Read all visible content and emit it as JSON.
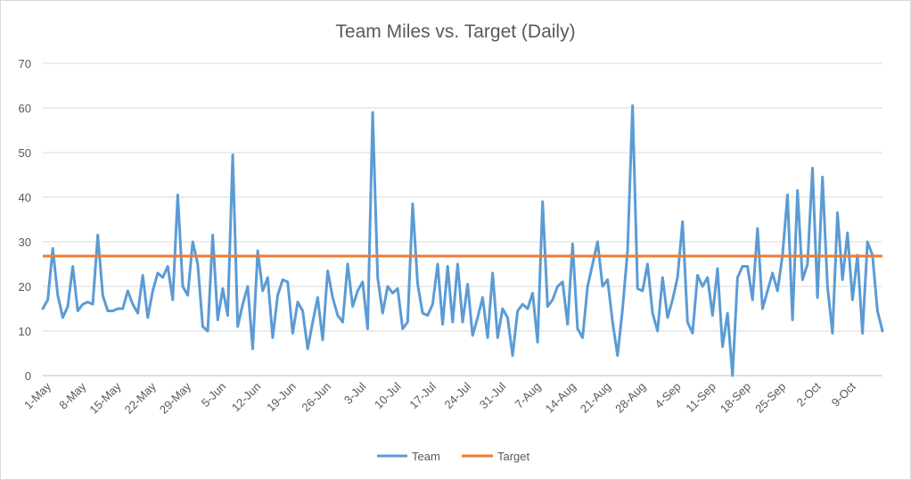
{
  "chart_data": {
    "type": "line",
    "title": "Team Miles vs. Target (Daily)",
    "xlabel": "",
    "ylabel": "",
    "ylim": [
      0,
      70
    ],
    "yticks": [
      0,
      10,
      20,
      30,
      40,
      50,
      60,
      70
    ],
    "grid": true,
    "legend_position": "bottom",
    "x_tick_labels": [
      "1-May",
      "8-May",
      "15-May",
      "22-May",
      "29-May",
      "5-Jun",
      "12-Jun",
      "19-Jun",
      "26-Jun",
      "3-Jul",
      "10-Jul",
      "17-Jul",
      "24-Jul",
      "31-Jul",
      "7-Aug",
      "14-Aug",
      "21-Aug",
      "28-Aug",
      "4-Sep",
      "11-Sep",
      "18-Sep",
      "25-Sep",
      "2-Oct",
      "9-Oct"
    ],
    "x_tick_every_days": 7,
    "series": [
      {
        "name": "Team",
        "color": "#5B9BD5",
        "values": [
          15,
          17,
          28.5,
          18,
          13,
          15.5,
          24.5,
          14.5,
          16,
          16.5,
          16,
          31.5,
          18,
          14.5,
          14.5,
          15,
          15,
          19,
          16,
          14,
          22.5,
          13,
          19,
          23,
          22,
          24.5,
          17,
          40.5,
          20,
          18,
          30,
          25,
          11,
          10,
          31.5,
          12.5,
          19.5,
          13.5,
          49.5,
          11,
          16,
          20,
          6,
          28,
          19,
          22,
          8.5,
          18,
          21.5,
          21,
          9.5,
          16.5,
          14.5,
          6,
          12,
          17.5,
          8,
          23.5,
          17.5,
          13.5,
          12,
          25,
          15.5,
          19,
          21,
          10.5,
          59,
          22,
          14,
          20,
          18.5,
          19.5,
          10.5,
          12,
          38.5,
          20.5,
          14,
          13.5,
          16,
          25,
          11.5,
          24.5,
          12,
          25,
          12,
          20.5,
          9,
          13,
          17.5,
          8.5,
          23,
          8.5,
          15,
          13,
          4.5,
          14.5,
          16,
          15,
          18.5,
          7.5,
          39,
          15.5,
          17,
          20,
          21,
          11.5,
          29.5,
          10.5,
          8.5,
          20,
          25,
          30,
          20,
          21.5,
          12,
          4.5,
          15,
          28,
          60.5,
          19.5,
          19,
          25,
          14,
          10,
          22,
          13,
          17,
          22,
          34.5,
          12,
          9.5,
          22.5,
          20,
          22,
          13.5,
          24,
          6.5,
          14,
          0,
          22,
          24.5,
          24.5,
          17,
          33,
          15,
          19,
          23,
          19,
          27,
          40.5,
          12.5,
          41.5,
          21.5,
          25,
          46.5,
          17.5,
          44.5,
          20,
          9.5,
          36.5,
          21.5,
          32,
          17,
          27,
          9.5,
          30,
          27,
          14.5,
          10
        ]
      },
      {
        "name": "Target",
        "color": "#ED7D31",
        "constant": 26.8
      }
    ]
  }
}
